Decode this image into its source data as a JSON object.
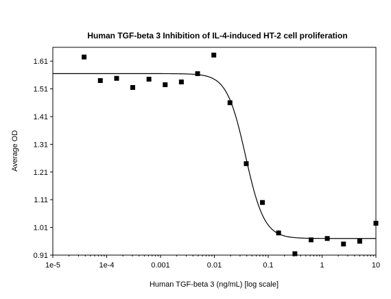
{
  "chart_data": {
    "type": "scatter",
    "title": "Human TGF-beta 3 Inhibition of IL-4-induced HT-2 cell proliferation",
    "xlabel": "Human TGF-beta 3 (ng/mL) [log scale]",
    "ylabel": "Average OD",
    "x_scale": "log",
    "xlim": [
      1e-05,
      10
    ],
    "ylim": [
      0.91,
      1.66
    ],
    "x_ticks": [
      1e-05,
      0.0001,
      0.001,
      0.01,
      0.1,
      1,
      10
    ],
    "x_tick_labels": [
      "1e-5",
      "1e-4",
      "0.001",
      "0.01",
      "0.1",
      "1",
      "10"
    ],
    "y_ticks": [
      0.91,
      1.01,
      1.11,
      1.21,
      1.31,
      1.41,
      1.51,
      1.61
    ],
    "y_tick_labels": [
      "0.91",
      "1.01",
      "1.11",
      "1.21",
      "1.31",
      "1.41",
      "1.51",
      "1.61"
    ],
    "grid": false,
    "legend": "none",
    "colors": {
      "marker": "#000000",
      "curve": "#000000",
      "axis": "#000000"
    },
    "series": [
      {
        "kind": "points",
        "x": [
          3.81e-05,
          7.63e-05,
          0.000153,
          0.000305,
          0.00061,
          0.00122,
          0.00244,
          0.00488,
          0.00977,
          0.0195,
          0.0391,
          0.0781,
          0.156,
          0.313,
          0.625,
          1.25,
          2.5,
          5,
          10
        ],
        "y": [
          1.625,
          1.54,
          1.548,
          1.515,
          1.545,
          1.525,
          1.535,
          1.565,
          1.632,
          1.46,
          1.24,
          1.1,
          0.99,
          0.915,
          0.965,
          0.97,
          0.95,
          0.96,
          1.025
        ]
      },
      {
        "kind": "fit",
        "model": "4PL",
        "top": 1.565,
        "bottom": 0.97,
        "ec50": 0.038,
        "hill": 2.5
      }
    ]
  }
}
